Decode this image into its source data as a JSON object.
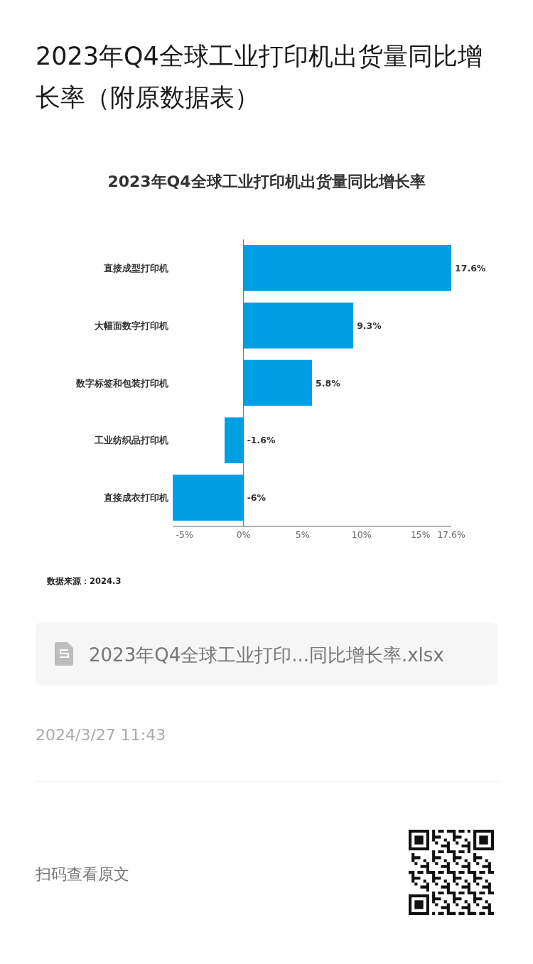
{
  "chart_data": {
    "type": "bar",
    "orientation": "horizontal",
    "title": "2023年Q4全球工业打印机出货量同比增长率（附原数据表）",
    "subtitle": "2023年Q4全球工业打印机出货量同比增长率",
    "categories": [
      "直接成型打印机",
      "大幅面数字打印机",
      "数字标签和包装打印机",
      "工业纺织品打印机",
      "直接成衣打印机"
    ],
    "values": [
      17.6,
      9.3,
      5.8,
      -1.6,
      -6
    ],
    "color": "#009fe3",
    "value_labels": [
      "17.6%",
      "9.3%",
      "5.8%",
      "-1.6%",
      "-6%"
    ],
    "xlim": [
      -6,
      17.6
    ],
    "xticks": [
      {
        "value": -5,
        "label": "-5%"
      },
      {
        "value": 0,
        "label": "0%"
      },
      {
        "value": 5,
        "label": "5%"
      },
      {
        "value": 10,
        "label": "10%"
      },
      {
        "value": 15,
        "label": "15%"
      },
      {
        "value": 17.6,
        "label": "17.6%"
      }
    ],
    "annotations": [
      "数据来源：2024.3",
      "2023年Q4全球工业打印...同比增长率.xlsx",
      "2024/3/27 11:43",
      "扫码查看原文"
    ]
  }
}
